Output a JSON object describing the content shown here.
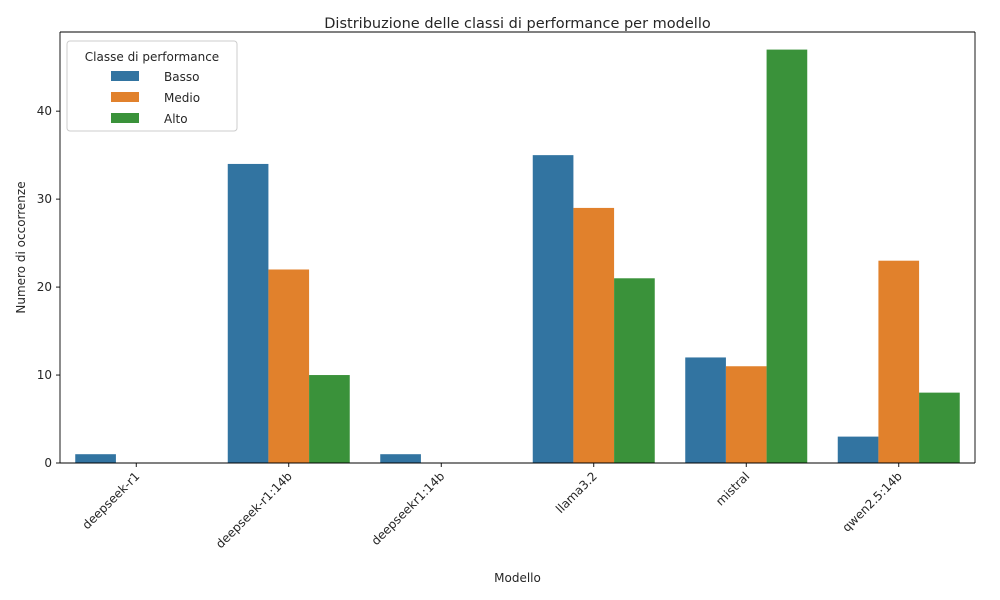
{
  "chart_data": {
    "type": "bar",
    "title": "Distribuzione delle classi di performance per modello",
    "xlabel": "Modello",
    "ylabel": "Numero di occorrenze",
    "categories": [
      "deepseek-r1",
      "deepseek-r1:14b",
      "deepseekr1:14b",
      "llama3.2",
      "mistral",
      "qwen2.5:14b"
    ],
    "series": [
      {
        "name": "Basso",
        "color": "#3274a1",
        "values": [
          1,
          34,
          1,
          35,
          12,
          3
        ]
      },
      {
        "name": "Medio",
        "color": "#e1812c",
        "values": [
          0,
          22,
          0,
          29,
          11,
          23
        ]
      },
      {
        "name": "Alto",
        "color": "#3a923a",
        "values": [
          0,
          10,
          0,
          21,
          47,
          8
        ]
      }
    ],
    "ylim": [
      0,
      49
    ],
    "yticks": [
      0,
      10,
      20,
      30,
      40
    ],
    "legend": {
      "title": "Classe di performance",
      "position": "top-left"
    },
    "grid": false
  }
}
